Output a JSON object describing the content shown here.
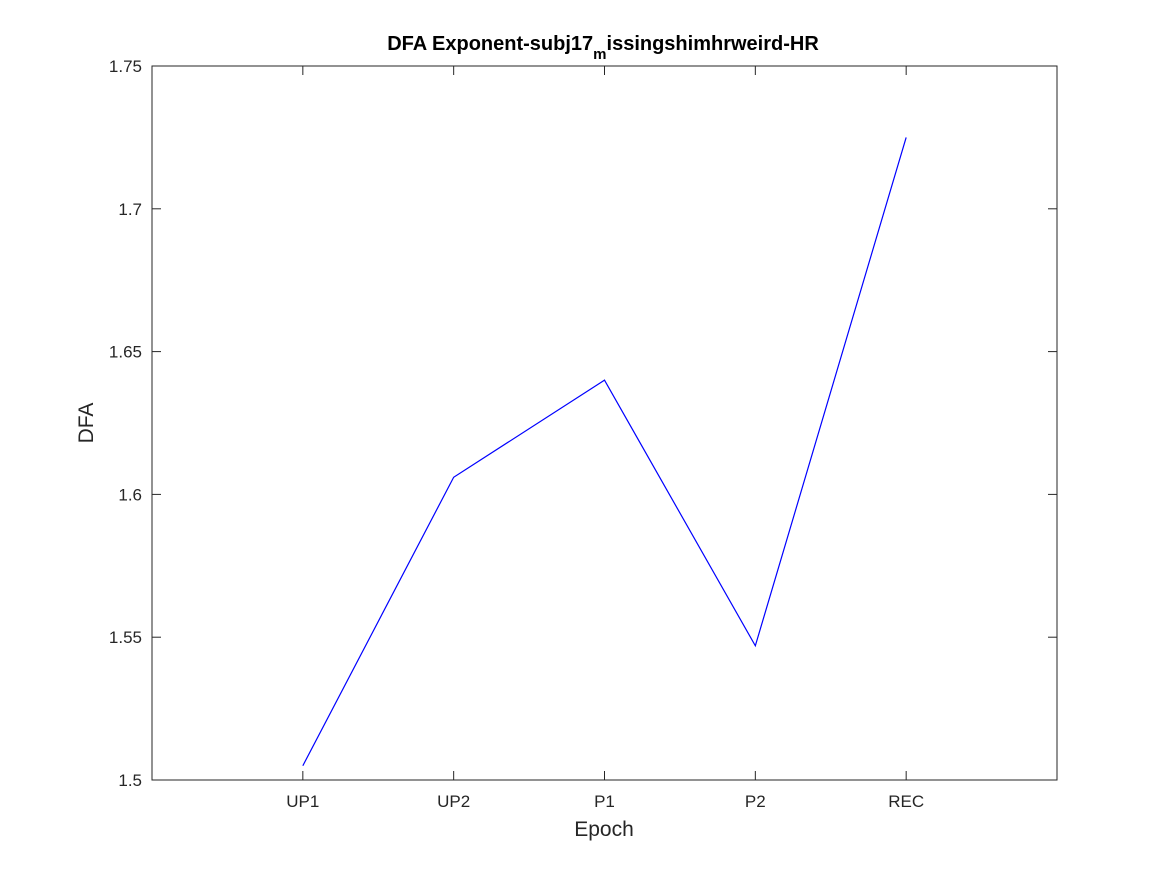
{
  "chart_data": {
    "type": "line",
    "title": {
      "before": "DFA Exponent-subj17",
      "subscript": "m",
      "after": "issingshimhrweird-HR"
    },
    "xlabel": "Epoch",
    "ylabel": "DFA",
    "categories": [
      "UP1",
      "UP2",
      "P1",
      "P2",
      "REC"
    ],
    "series": [
      {
        "values": [
          1.505,
          1.606,
          1.64,
          1.547,
          1.725
        ],
        "color": "#0000ff"
      }
    ],
    "ylim": [
      1.5,
      1.75
    ],
    "yticks": [
      1.5,
      1.55,
      1.6,
      1.65,
      1.7,
      1.75
    ],
    "ytick_labels": [
      "1.5",
      "1.55",
      "1.6",
      "1.65",
      "1.7",
      "1.75"
    ],
    "grid": false,
    "legend": "none",
    "box": true
  }
}
